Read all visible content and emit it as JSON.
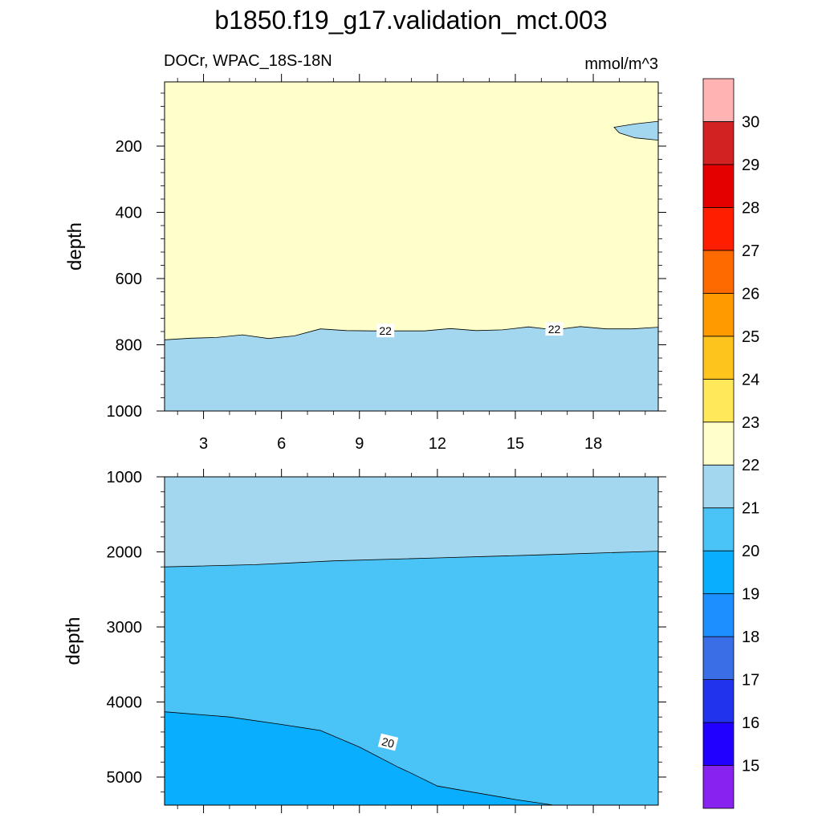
{
  "title": "b1850.f19_g17.validation_mct.003",
  "subtitle_left": "DOCr, WPAC_18S-18N",
  "subtitle_right": "mmol/m^3",
  "colors": {
    "c14_15": "#8822ee",
    "c15_16": "#2200ff",
    "c16_17": "#2233ee",
    "c17_18": "#3a6ee6",
    "c18_19": "#1e8fff",
    "c19_20": "#0aaefe",
    "c20_21": "#4ac3f7",
    "c21_22": "#a2d7ef",
    "c22_23": "#ffffcc",
    "c23_24": "#ffe85a",
    "c24_25": "#fec41e",
    "c25_26": "#ff9a00",
    "c26_27": "#ff6a00",
    "c27_28": "#ff1e00",
    "c28_29": "#e50000",
    "c29_30": "#d22222",
    "c30_plus": "#ffb3b3"
  },
  "chart_data": [
    {
      "type": "contour",
      "panel": "upper",
      "xlabel": "",
      "ylabel": "depth",
      "xlim": [
        1.5,
        20.5
      ],
      "ylim": [
        1000,
        10
      ],
      "x_ticks": [
        3,
        6,
        9,
        12,
        15,
        18
      ],
      "x_tick_labels": [
        "3",
        "6",
        "9",
        "12",
        "15",
        "18"
      ],
      "y_ticks": [
        200,
        400,
        600,
        800,
        1000
      ],
      "y_tick_labels": [
        "200",
        "400",
        "600",
        "800",
        "1000"
      ],
      "regions": [
        {
          "level": "22-23",
          "color": "c22_23",
          "note": "fills above the 22 contour"
        },
        {
          "level": "21-22",
          "color": "c21_22",
          "note": "fills below the 22 contour"
        }
      ],
      "contour_22": {
        "x": [
          1.5,
          2.5,
          3.5,
          4.5,
          5.5,
          6.5,
          7.5,
          8.5,
          9.5,
          10.5,
          11.5,
          12.5,
          13.5,
          14.5,
          15.5,
          16.5,
          17.5,
          18.5,
          19.5,
          20.5
        ],
        "depth": [
          785,
          780,
          778,
          770,
          781,
          773,
          752,
          757,
          758,
          758,
          758,
          751,
          757,
          755,
          746,
          755,
          745,
          752,
          752,
          747
        ]
      },
      "patch_21_22": {
        "x": [
          18.8,
          19.6,
          20.5,
          20.5,
          19.6,
          19.0
        ],
        "depth": [
          143,
          133,
          125,
          182,
          175,
          160
        ]
      },
      "contour_labels": [
        {
          "text": "22",
          "x": 10.0,
          "depth": 758
        },
        {
          "text": "22",
          "x": 16.5,
          "depth": 753
        }
      ]
    },
    {
      "type": "contour",
      "panel": "lower",
      "xlabel": "",
      "ylabel": "depth",
      "xlim": [
        1.5,
        20.5
      ],
      "ylim": [
        1000,
        5375
      ],
      "y_ticks": [
        1000,
        2000,
        3000,
        4000,
        5000
      ],
      "y_tick_labels": [
        "1000",
        "2000",
        "3000",
        "4000",
        "5000"
      ],
      "regions": [
        {
          "level": "21-22",
          "color": "c21_22",
          "note": "fills above the 21 contour"
        },
        {
          "level": "20-21",
          "color": "c20_21",
          "note": "between 21 and 20 contours"
        },
        {
          "level": "19-20",
          "color": "c19_20",
          "note": "below the 20 contour"
        }
      ],
      "contour_21": {
        "x": [
          1.5,
          5.0,
          8.0,
          12.0,
          16.0,
          20.5
        ],
        "depth": [
          2200,
          2170,
          2120,
          2080,
          2040,
          1990
        ]
      },
      "contour_20": {
        "x": [
          1.5,
          4.0,
          6.0,
          7.5,
          9.0,
          10.5,
          11.0,
          12.0,
          13.0,
          15.0,
          16.5
        ],
        "depth": [
          4130,
          4200,
          4300,
          4380,
          4600,
          4870,
          4950,
          5120,
          5180,
          5300,
          5375
        ]
      },
      "contour_labels": [
        {
          "text": "20",
          "x": 10.1,
          "depth": 4540
        }
      ]
    }
  ],
  "colorbar": {
    "labels": [
      "15",
      "16",
      "17",
      "18",
      "19",
      "20",
      "21",
      "22",
      "23",
      "24",
      "25",
      "26",
      "27",
      "28",
      "29",
      "30"
    ],
    "colors": [
      "c14_15",
      "c15_16",
      "c16_17",
      "c17_18",
      "c18_19",
      "c19_20",
      "c20_21",
      "c21_22",
      "c22_23",
      "c23_24",
      "c24_25",
      "c25_26",
      "c26_27",
      "c27_28",
      "c28_29",
      "c29_30",
      "c30_plus"
    ]
  }
}
